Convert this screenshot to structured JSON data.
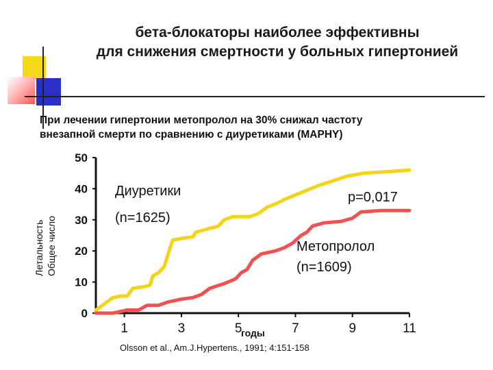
{
  "header": {
    "title_line1": "бета-блокаторы наиболее эффективны",
    "title_line2": "для снижения смертности  у больных гипертонией",
    "subtitle_line1": "При лечении гипертонии метопролол на 30% снижал частоту",
    "subtitle_line2": "внезапной смерти по сравнению с диуретиками (MAPHY)"
  },
  "citation": "Olsson et al., Am.J.Hypertens., 1991; 4:151-158",
  "colors": {
    "deco_yellow": "#f7d91c",
    "deco_blue": "#2a2fc8",
    "deco_red": "#ff4040",
    "diuretics_line": "#f5d316",
    "metoprolol_line": "#f2524f",
    "axis": "#111111"
  },
  "chart_data": {
    "type": "line",
    "ylabel": [
      "Летальность",
      "Общее число"
    ],
    "xlabel_unit": "годы",
    "ylim": [
      0,
      50
    ],
    "xlim": [
      0,
      11
    ],
    "y_ticks": [
      0,
      10,
      20,
      30,
      40,
      50
    ],
    "x_ticks": [
      1,
      3,
      5,
      7,
      9,
      11
    ],
    "annotations": {
      "pvalue": "p=0,017",
      "diuretics_name": "Диуретики",
      "diuretics_n": "(n=1625)",
      "metoprolol_name": "Метопролол",
      "metoprolol_n": "(n=1609)"
    },
    "series": [
      {
        "name": "Диуретики",
        "color": "#f5d316",
        "points": [
          [
            0,
            1
          ],
          [
            0.3,
            3
          ],
          [
            0.6,
            5
          ],
          [
            0.9,
            5.5
          ],
          [
            1.1,
            5.5
          ],
          [
            1.3,
            8
          ],
          [
            1.7,
            8.5
          ],
          [
            1.9,
            9
          ],
          [
            2,
            12
          ],
          [
            2.2,
            13
          ],
          [
            2.4,
            15
          ],
          [
            2.5,
            18
          ],
          [
            2.6,
            21
          ],
          [
            2.7,
            23.5
          ],
          [
            3,
            24
          ],
          [
            3.4,
            24.5
          ],
          [
            3.5,
            26
          ],
          [
            3.9,
            27
          ],
          [
            4.3,
            28
          ],
          [
            4.5,
            30
          ],
          [
            4.8,
            31
          ],
          [
            5.4,
            31
          ],
          [
            5.7,
            32
          ],
          [
            6,
            34
          ],
          [
            6.4,
            35.5
          ],
          [
            6.6,
            36.5
          ],
          [
            7,
            38
          ],
          [
            7.4,
            39.5
          ],
          [
            7.8,
            41
          ],
          [
            8.3,
            42.5
          ],
          [
            8.8,
            44
          ],
          [
            9.4,
            45
          ],
          [
            10.3,
            45.5
          ],
          [
            11,
            46
          ]
        ]
      },
      {
        "name": "Метопролол",
        "color": "#f2524f",
        "points": [
          [
            0,
            0
          ],
          [
            0.6,
            0
          ],
          [
            1.1,
            1
          ],
          [
            1.5,
            1
          ],
          [
            1.8,
            2.5
          ],
          [
            2.2,
            2.5
          ],
          [
            2.5,
            3.5
          ],
          [
            3,
            4.5
          ],
          [
            3.4,
            5
          ],
          [
            3.7,
            6
          ],
          [
            4,
            8
          ],
          [
            4.5,
            9.5
          ],
          [
            4.9,
            11
          ],
          [
            5.1,
            13
          ],
          [
            5.3,
            14
          ],
          [
            5.5,
            17
          ],
          [
            5.8,
            19
          ],
          [
            6.3,
            20
          ],
          [
            6.6,
            21
          ],
          [
            6.9,
            22.5
          ],
          [
            7.2,
            25
          ],
          [
            7.4,
            26
          ],
          [
            7.6,
            28
          ],
          [
            8,
            29
          ],
          [
            8.6,
            29.5
          ],
          [
            9,
            30.5
          ],
          [
            9.3,
            32.5
          ],
          [
            10,
            33
          ],
          [
            11,
            33
          ]
        ]
      }
    ]
  }
}
